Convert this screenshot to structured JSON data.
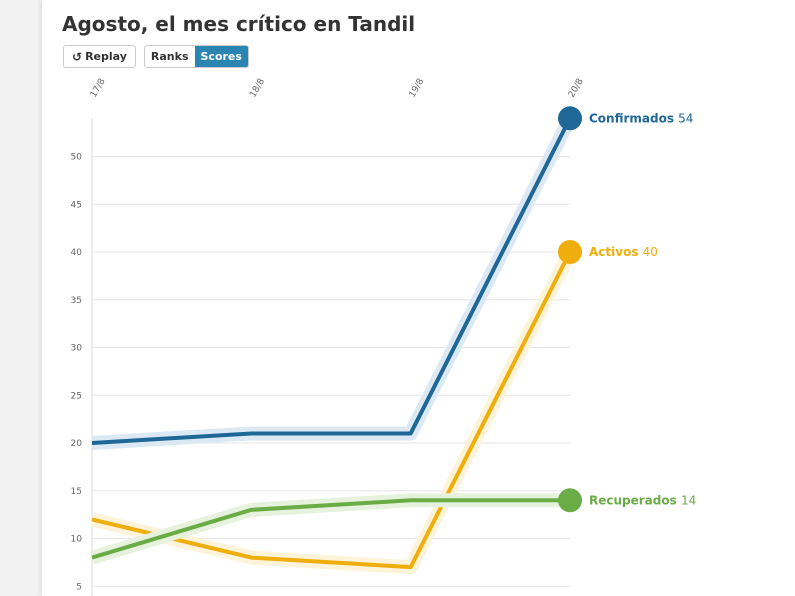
{
  "title": "Agosto, el mes crítico en Tandil",
  "controls": {
    "replay_label": "Replay",
    "ranks_label": "Ranks",
    "scores_label": "Scores",
    "active_mode": "scores"
  },
  "chart_data": {
    "type": "line",
    "title": "Agosto, el mes crítico en Tandil",
    "categories": [
      "17/8",
      "18/8",
      "19/8",
      "20/8"
    ],
    "yticks": [
      5,
      10,
      15,
      20,
      25,
      30,
      35,
      40,
      45,
      50
    ],
    "ylim": [
      4.5,
      54
    ],
    "grid": true,
    "series": [
      {
        "name": "Confirmados",
        "values": [
          20,
          21,
          21,
          54
        ],
        "color": "#1f6796",
        "halo": "#dce9f4"
      },
      {
        "name": "Activos",
        "values": [
          12,
          8,
          7,
          40
        ],
        "color": "#efae0c",
        "halo": "#fdf3d9"
      },
      {
        "name": "Recuperados",
        "values": [
          8,
          13,
          14,
          14
        ],
        "color": "#6aac45",
        "halo": "#e6f2dd"
      }
    ]
  }
}
